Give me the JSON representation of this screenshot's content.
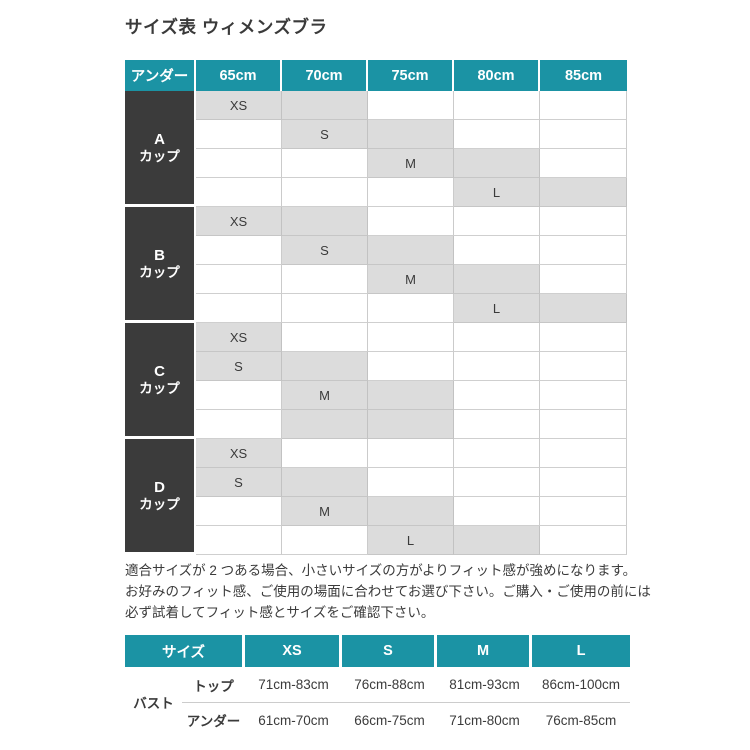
{
  "page_title": "サイズ表 ウィメンズブラ",
  "colors": {
    "header_teal": "#1b93a4",
    "cup_dark": "#3b3b3b",
    "shaded_cell": "#dcdcdc",
    "cell_border": "#cbcbcb",
    "text": "#3b3b3b"
  },
  "size_chart": {
    "columns": [
      "アンダー",
      "65cm",
      "70cm",
      "75cm",
      "80cm",
      "85cm"
    ],
    "cup_word": "カップ",
    "sections": [
      {
        "cup": "A",
        "rows": [
          {
            "label": "XS",
            "label_col": "65cm",
            "shaded_cols": "65cm-70cm"
          },
          {
            "label": "S",
            "label_col": "70cm",
            "shaded_cols": "70cm-75cm"
          },
          {
            "label": "M",
            "label_col": "75cm",
            "shaded_cols": "75cm-80cm"
          },
          {
            "label": "L",
            "label_col": "80cm",
            "shaded_cols": "80cm-85cm"
          }
        ]
      },
      {
        "cup": "B",
        "rows": [
          {
            "label": "XS",
            "label_col": "65cm",
            "shaded_cols": "65cm-70cm"
          },
          {
            "label": "S",
            "label_col": "70cm",
            "shaded_cols": "70cm-75cm"
          },
          {
            "label": "M",
            "label_col": "75cm",
            "shaded_cols": "75cm-80cm"
          },
          {
            "label": "L",
            "label_col": "80cm",
            "shaded_cols": "80cm-85cm"
          }
        ]
      },
      {
        "cup": "C",
        "rows": [
          {
            "label": "XS",
            "label_col": "65cm",
            "shaded_cols": "65cm"
          },
          {
            "label": "S",
            "label_col": "65cm",
            "shaded_cols": "65cm-70cm"
          },
          {
            "label": "M",
            "label_col": "70cm",
            "shaded_cols": "70cm-75cm"
          },
          {
            "label": "",
            "label_col": "",
            "shaded_cols": "70cm-75cm"
          }
        ]
      },
      {
        "cup": "D",
        "rows": [
          {
            "label": "XS",
            "label_col": "65cm",
            "shaded_cols": "65cm"
          },
          {
            "label": "S",
            "label_col": "65cm",
            "shaded_cols": "65cm-70cm"
          },
          {
            "label": "M",
            "label_col": "70cm",
            "shaded_cols": "70cm-75cm"
          },
          {
            "label": "L",
            "label_col": "75cm",
            "shaded_cols": "75cm-80cm"
          }
        ]
      }
    ]
  },
  "note": {
    "lines": [
      "適合サイズが 2 つある場合、小さいサイズの方がよりフィット感が強めになります。",
      "お好みのフィット感、ご使用の場面に合わせてお選び下さい。ご購入・ご使用の前には",
      "必ず試着してフィット感とサイズをご確認下さい。"
    ]
  },
  "measurement_table": {
    "headers": [
      "サイズ",
      "XS",
      "S",
      "M",
      "L"
    ],
    "group_label": "バスト",
    "rows": [
      {
        "label": "トップ",
        "values": [
          "71cm-83cm",
          "76cm-88cm",
          "81cm-93cm",
          "86cm-100cm"
        ]
      },
      {
        "label": "アンダー",
        "values": [
          "61cm-70cm",
          "66cm-75cm",
          "71cm-80cm",
          "76cm-85cm"
        ]
      }
    ]
  }
}
